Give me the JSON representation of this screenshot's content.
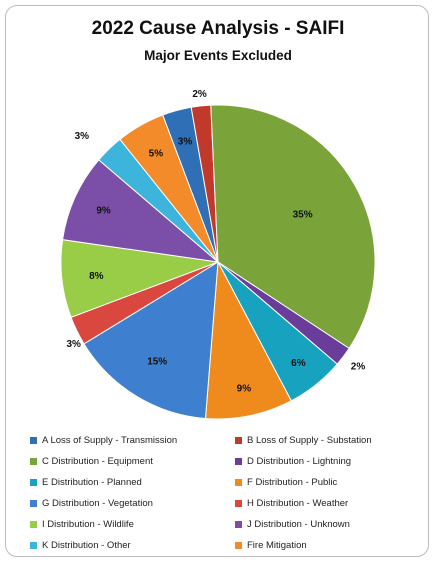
{
  "chart_data": {
    "type": "pie",
    "title": "2022 Cause Analysis - SAIFI",
    "subtitle": "Major Events Excluded",
    "slices": [
      {
        "label": "A Loss of Supply - Transmission",
        "value": 3,
        "data_label": "3%",
        "color": "#2e6fb5"
      },
      {
        "label": "B Loss of Supply - Substation",
        "value": 2,
        "data_label": "2%",
        "color": "#c0392b"
      },
      {
        "label": "C Distribution - Equipment",
        "value": 35,
        "data_label": "35%",
        "color": "#7aa33a"
      },
      {
        "label": "D Distribution - Lightning",
        "value": 2,
        "data_label": "2%",
        "color": "#6a3d9a"
      },
      {
        "label": "E Distribution - Planned",
        "value": 6,
        "data_label": "6%",
        "color": "#17a2c0"
      },
      {
        "label": "F Distribution - Public",
        "value": 9,
        "data_label": "9%",
        "color": "#ef8a1c"
      },
      {
        "label": "G Distribution - Vegetation",
        "value": 15,
        "data_label": "15%",
        "color": "#3f7fcf"
      },
      {
        "label": "H Distribution - Weather",
        "value": 3,
        "data_label": "3%",
        "color": "#d9473f"
      },
      {
        "label": "I Distribution - Wildlife",
        "value": 8,
        "data_label": "8%",
        "color": "#9acd47"
      },
      {
        "label": "J Distribution - Unknown",
        "value": 9,
        "data_label": "9%",
        "color": "#7b4fa8"
      },
      {
        "label": "K Distribution - Other",
        "value": 3,
        "data_label": "3%",
        "color": "#3cb4dc"
      },
      {
        "label": "Fire Mitigation",
        "value": 5,
        "data_label": "5%",
        "color": "#f48b2a"
      }
    ],
    "legend_position": "bottom"
  }
}
